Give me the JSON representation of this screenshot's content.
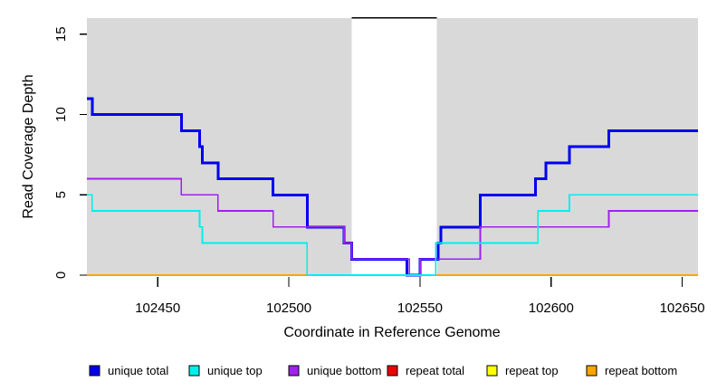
{
  "chart": {
    "plot_bg": "#d9d9d9",
    "axis_color": "#000000",
    "highlight_region": {
      "start": 102524,
      "end": 102556.5,
      "fill": "#ffffff",
      "top_line_color": "#000000"
    },
    "x_axis": {
      "ticks": [
        102450,
        102500,
        102550,
        102600,
        102650
      ]
    },
    "y_axis": {
      "ticks": [
        0,
        5,
        10,
        15
      ]
    }
  },
  "chart_data": {
    "type": "line",
    "title": "",
    "xlabel": "Coordinate in Reference Genome",
    "ylabel": "Read Coverage Depth",
    "xlim": [
      102423,
      102656
    ],
    "ylim": [
      0,
      16
    ],
    "legend_position": "bottom",
    "grid": false,
    "series": [
      {
        "name": "unique total",
        "color": "#0000ee",
        "width": 3,
        "points": [
          [
            102423,
            11
          ],
          [
            102425,
            10
          ],
          [
            102459,
            9
          ],
          [
            102466,
            8
          ],
          [
            102467,
            7
          ],
          [
            102473,
            6
          ],
          [
            102494,
            5
          ],
          [
            102507,
            3
          ],
          [
            102521,
            2
          ],
          [
            102524,
            1
          ],
          [
            102545,
            0
          ],
          [
            102550,
            1
          ],
          [
            102557,
            2
          ],
          [
            102558,
            3
          ],
          [
            102573,
            5
          ],
          [
            102594,
            6
          ],
          [
            102598,
            7
          ],
          [
            102607,
            8
          ],
          [
            102622,
            9
          ],
          [
            102656,
            9
          ]
        ]
      },
      {
        "name": "unique top",
        "color": "#00eeee",
        "width": 1.7,
        "points": [
          [
            102423,
            5
          ],
          [
            102425,
            4
          ],
          [
            102466,
            3
          ],
          [
            102467,
            2
          ],
          [
            102507,
            0
          ],
          [
            102556,
            2
          ],
          [
            102595,
            4
          ],
          [
            102607,
            5
          ],
          [
            102656,
            5
          ]
        ]
      },
      {
        "name": "unique bottom",
        "color": "#a020f0",
        "width": 1.7,
        "points": [
          [
            102423,
            6
          ],
          [
            102459,
            5
          ],
          [
            102473,
            4
          ],
          [
            102494,
            3
          ],
          [
            102521,
            2
          ],
          [
            102524,
            1
          ],
          [
            102546,
            0
          ],
          [
            102550,
            1
          ],
          [
            102573,
            3
          ],
          [
            102622,
            4
          ],
          [
            102656,
            4
          ]
        ]
      },
      {
        "name": "repeat total",
        "color": "#ee0000",
        "width": 1.7,
        "points": [
          [
            102423,
            0
          ],
          [
            102656,
            0
          ]
        ]
      },
      {
        "name": "repeat top",
        "color": "#ffff00",
        "width": 1.7,
        "points": [
          [
            102423,
            0
          ],
          [
            102656,
            0
          ]
        ]
      },
      {
        "name": "repeat bottom",
        "color": "#ffa500",
        "width": 2,
        "points": [
          [
            102423,
            0
          ],
          [
            102656,
            0
          ]
        ]
      }
    ]
  },
  "legend": {
    "items": [
      {
        "label": "unique total",
        "color": "#0000ee"
      },
      {
        "label": "unique top",
        "color": "#00eeee"
      },
      {
        "label": "unique bottom",
        "color": "#a020f0"
      },
      {
        "label": "repeat total",
        "color": "#ee0000"
      },
      {
        "label": "repeat top",
        "color": "#ffff00"
      },
      {
        "label": "repeat bottom",
        "color": "#ffa500"
      }
    ]
  }
}
